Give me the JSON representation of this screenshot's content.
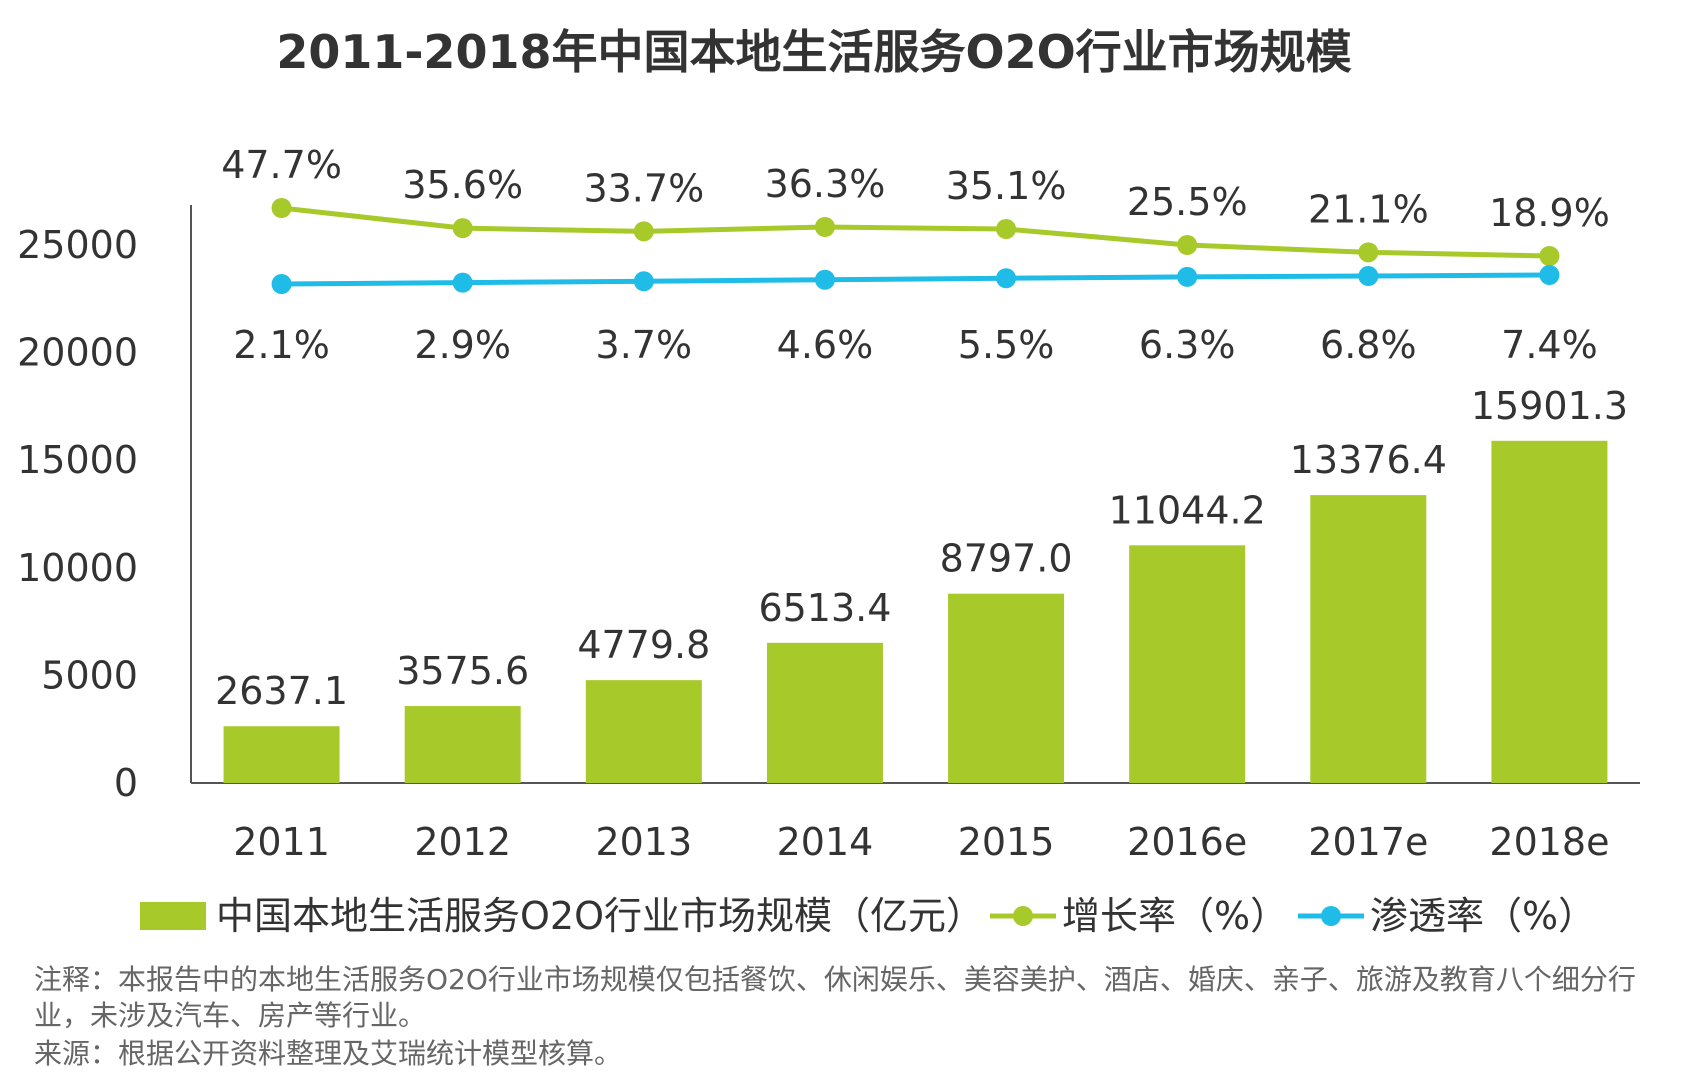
{
  "chart_data": {
    "type": "bar",
    "title": "2011-2018年中国本地生活服务O2O行业市场规模",
    "categories": [
      "2011",
      "2012",
      "2013",
      "2014",
      "2015",
      "2016e",
      "2017e",
      "2018e"
    ],
    "y_ticks": [
      "0",
      "5000",
      "10000",
      "15000",
      "20000",
      "25000"
    ],
    "ylim": [
      0,
      27000
    ],
    "xlabel": "",
    "ylabel": "",
    "series": [
      {
        "name": "中国本地生活服务O2O行业市场规模（亿元）",
        "type": "bar",
        "color": "#a8c92a",
        "values": [
          2637.1,
          3575.6,
          4779.8,
          6513.4,
          8797.0,
          11044.2,
          13376.4,
          15901.3
        ],
        "labels": [
          "2637.1",
          "3575.6",
          "4779.8",
          "6513.4",
          "8797.0",
          "11044.2",
          "13376.4",
          "15901.3"
        ]
      },
      {
        "name": "增长率（%）",
        "type": "line",
        "color": "#a8c92a",
        "values": [
          47.7,
          35.6,
          33.7,
          36.3,
          35.1,
          25.5,
          21.1,
          18.9
        ],
        "labels": [
          "47.7%",
          "35.6%",
          "33.7%",
          "36.3%",
          "35.1%",
          "25.5%",
          "21.1%",
          "18.9%"
        ]
      },
      {
        "name": "渗透率（%）",
        "type": "line",
        "color": "#1fbce8",
        "values": [
          2.1,
          2.9,
          3.7,
          4.6,
          5.5,
          6.3,
          6.8,
          7.4
        ],
        "labels": [
          "2.1%",
          "2.9%",
          "3.7%",
          "4.6%",
          "5.5%",
          "6.3%",
          "6.8%",
          "7.4%"
        ]
      }
    ],
    "legend": {
      "placement": "bottom",
      "items": [
        "中国本地生活服务O2O行业市场规模（亿元）",
        "增长率（%）",
        "渗透率（%）"
      ]
    }
  },
  "notes": {
    "note_text": "注释：本报告中的本地生活服务O2O行业市场规模仅包括餐饮、休闲娱乐、美容美护、酒店、婚庆、亲子、旅游及教育八个细分行业，未涉及汽车、房产等行业。",
    "source_text": "来源：根据公开资料整理及艾瑞统计模型核算。"
  }
}
